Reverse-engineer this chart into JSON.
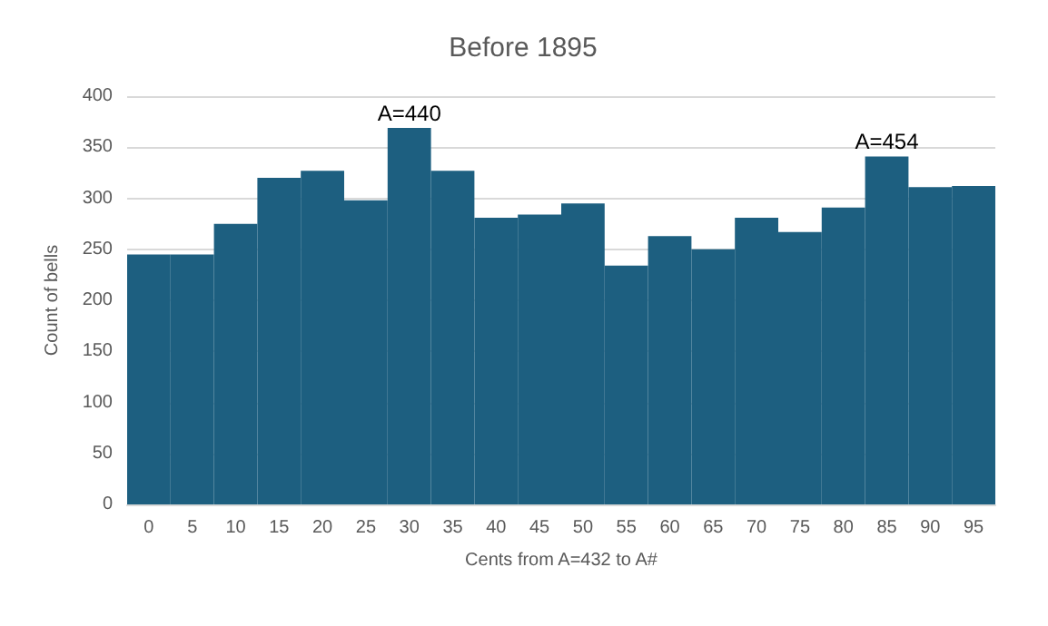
{
  "chart_data": {
    "type": "bar",
    "title": "Before 1895",
    "xlabel": "Cents from A=432 to A#",
    "ylabel": "Count of bells",
    "categories": [
      "0",
      "5",
      "10",
      "15",
      "20",
      "25",
      "30",
      "35",
      "40",
      "45",
      "50",
      "55",
      "60",
      "65",
      "70",
      "75",
      "80",
      "85",
      "90",
      "95"
    ],
    "values": [
      245,
      245,
      275,
      320,
      327,
      298,
      369,
      327,
      281,
      284,
      295,
      234,
      263,
      250,
      281,
      267,
      291,
      341,
      311,
      312
    ],
    "color": "#1d5f80",
    "ylim": [
      0,
      400
    ],
    "yticks": [
      0,
      50,
      100,
      150,
      200,
      250,
      300,
      350,
      400
    ],
    "grid": "y",
    "annotations": [
      {
        "text": "A=440",
        "x": "30",
        "y": 369
      },
      {
        "text": "A=454",
        "x": "85",
        "y": 341
      }
    ]
  }
}
